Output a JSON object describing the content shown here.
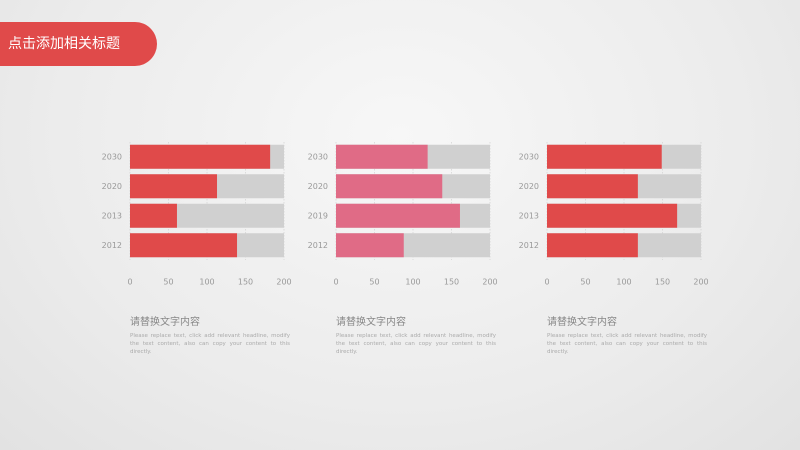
{
  "title": "点击添加相关标题",
  "chart_data": [
    {
      "type": "bar",
      "orientation": "horizontal",
      "categories": [
        "2030",
        "2020",
        "2013",
        "2012"
      ],
      "values": [
        182,
        113,
        61,
        139
      ],
      "color": "#e04a4a",
      "track_color": "#d0d0d0",
      "xlim": [
        0,
        200
      ],
      "xticks": [
        0,
        50,
        100,
        150,
        200
      ],
      "grid": true,
      "caption": {
        "heading": "请替换文字内容",
        "body": "Please replace text, click add relevant headline, modify the text content, also can copy your content to this directly."
      }
    },
    {
      "type": "bar",
      "orientation": "horizontal",
      "categories": [
        "2030",
        "2020",
        "2019",
        "2012"
      ],
      "values": [
        119,
        138,
        161,
        88
      ],
      "color": "#e06b86",
      "track_color": "#d0d0d0",
      "xlim": [
        0,
        200
      ],
      "xticks": [
        0,
        50,
        100,
        150,
        200
      ],
      "grid": true,
      "caption": {
        "heading": "请替换文字内容",
        "body": "Please replace text, click add relevant headline, modify the text content, also can copy your content to this directly."
      }
    },
    {
      "type": "bar",
      "orientation": "horizontal",
      "categories": [
        "2030",
        "2020",
        "2013",
        "2012"
      ],
      "values": [
        149,
        118,
        169,
        118
      ],
      "color": "#e04a4a",
      "track_color": "#d0d0d0",
      "xlim": [
        0,
        200
      ],
      "xticks": [
        0,
        50,
        100,
        150,
        200
      ],
      "grid": true,
      "caption": {
        "heading": "请替换文字内容",
        "body": "Please replace text, click add relevant headline, modify the text content, also can copy your content to this directly."
      }
    }
  ]
}
